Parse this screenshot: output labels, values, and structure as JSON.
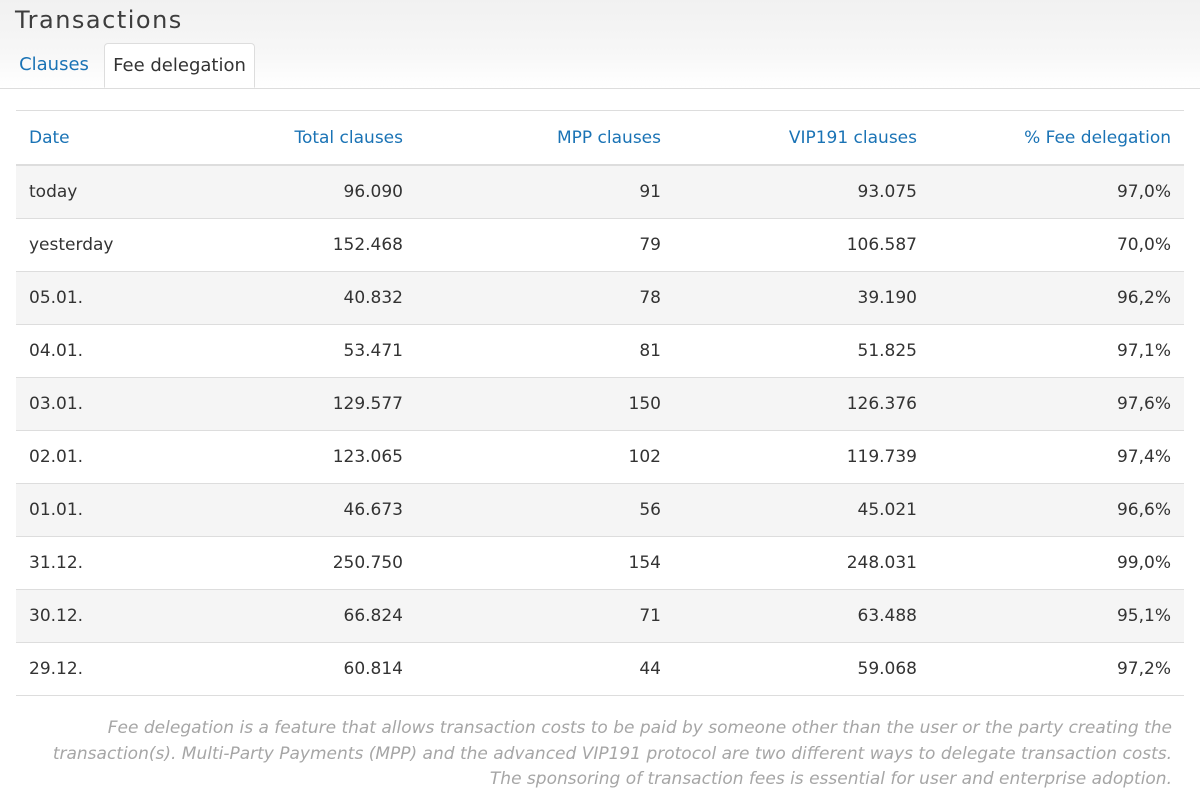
{
  "page": {
    "title": "Transactions"
  },
  "tabs": [
    {
      "label": "Clauses",
      "active": false
    },
    {
      "label": "Fee delegation",
      "active": true
    }
  ],
  "table": {
    "columns": [
      "Date",
      "Total clauses",
      "MPP clauses",
      "VIP191 clauses",
      "% Fee delegation"
    ],
    "rows": [
      [
        "today",
        "96.090",
        "91",
        "93.075",
        "97,0%"
      ],
      [
        "yesterday",
        "152.468",
        "79",
        "106.587",
        "70,0%"
      ],
      [
        "05.01.",
        "40.832",
        "78",
        "39.190",
        "96,2%"
      ],
      [
        "04.01.",
        "53.471",
        "81",
        "51.825",
        "97,1%"
      ],
      [
        "03.01.",
        "129.577",
        "150",
        "126.376",
        "97,6%"
      ],
      [
        "02.01.",
        "123.065",
        "102",
        "119.739",
        "97,4%"
      ],
      [
        "01.01.",
        "46.673",
        "56",
        "45.021",
        "96,6%"
      ],
      [
        "31.12.",
        "250.750",
        "154",
        "248.031",
        "99,0%"
      ],
      [
        "30.12.",
        "66.824",
        "71",
        "63.488",
        "95,1%"
      ],
      [
        "29.12.",
        "60.814",
        "44",
        "59.068",
        "97,2%"
      ]
    ]
  },
  "footnote": "Fee delegation is a feature that allows transaction costs to be paid by someone other than the user or the party creating the transaction(s). Multi-Party Payments (MPP) and the advanced VIP191 protocol are two different ways to delegate transaction costs. The sponsoring of transaction fees is essential for user and enterprise adoption.",
  "colors": {
    "link": "#1a73b5",
    "text": "#333333",
    "stripe": "#f5f5f5",
    "border": "#dddddd",
    "footnote": "#a6a6a6"
  }
}
